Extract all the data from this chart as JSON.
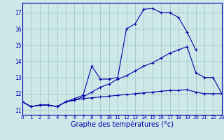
{
  "xlabel": "Graphe des températures (°c)",
  "bg_color": "#cce8e8",
  "grid_color": "#aacccc",
  "line_color": "#0000aa",
  "ylim": [
    10.7,
    17.6
  ],
  "xlim": [
    0,
    23
  ],
  "yticks": [
    11,
    12,
    13,
    14,
    15,
    16,
    17
  ],
  "xticks": [
    0,
    1,
    2,
    3,
    4,
    5,
    6,
    7,
    8,
    9,
    10,
    11,
    12,
    13,
    14,
    15,
    16,
    17,
    18,
    19,
    20,
    21,
    22,
    23
  ],
  "series": [
    [
      11.5,
      11.2,
      11.3,
      11.3,
      11.2,
      11.5,
      11.7,
      11.9,
      13.7,
      12.9,
      12.9,
      13.0,
      16.0,
      16.3,
      17.2,
      17.25,
      17.0,
      17.0,
      16.7,
      15.8,
      14.7,
      null,
      null,
      null
    ],
    [
      11.5,
      11.2,
      11.3,
      11.3,
      11.2,
      11.5,
      11.6,
      11.8,
      12.1,
      12.4,
      12.6,
      12.9,
      13.1,
      13.4,
      13.7,
      13.9,
      14.2,
      14.5,
      14.7,
      14.9,
      13.3,
      13.0,
      13.0,
      12.0
    ],
    [
      11.5,
      11.2,
      11.3,
      11.3,
      11.2,
      11.5,
      11.6,
      11.7,
      11.75,
      11.8,
      11.85,
      11.9,
      11.95,
      12.0,
      12.05,
      12.1,
      12.15,
      12.2,
      12.2,
      12.25,
      12.1,
      12.0,
      12.0,
      12.0
    ]
  ],
  "ylabel_fontsize": 5.5,
  "xlabel_fontsize": 7.0,
  "tick_fontsize": 5.0
}
